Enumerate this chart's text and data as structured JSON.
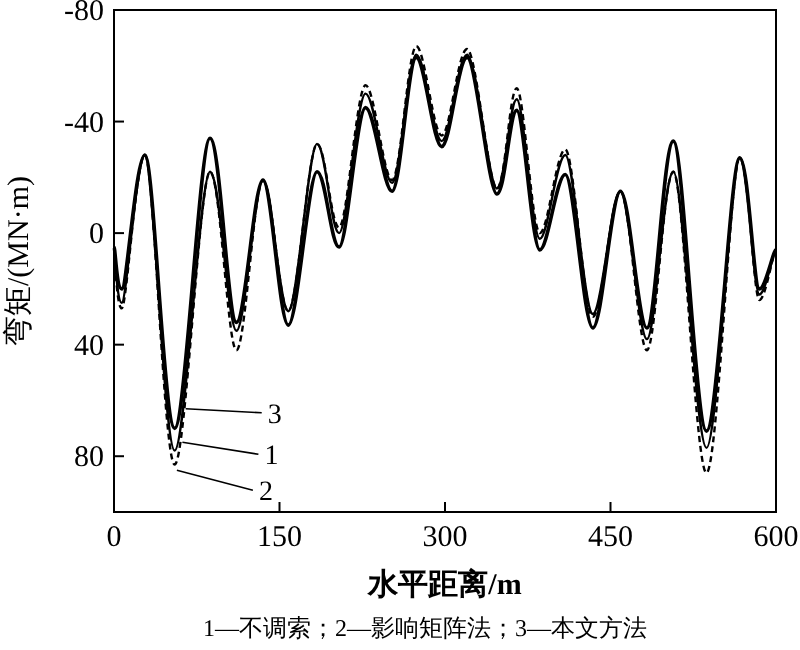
{
  "chart_data": {
    "type": "line",
    "xlabel": "水平距离/m",
    "ylabel": "弯矩/(MN·m)",
    "x": [
      0,
      7,
      28,
      55,
      87,
      111,
      135,
      158,
      184,
      204,
      228,
      252,
      274,
      297,
      320,
      347,
      365,
      386,
      409,
      434,
      459,
      483,
      507,
      537,
      567,
      585,
      600
    ],
    "series": [
      {
        "color": "#000000",
        "line_style": "solid",
        "values": [
          6,
          25,
          -28,
          78,
          -22,
          35,
          -19,
          28,
          -32,
          0,
          -50,
          -18,
          -64,
          -33,
          -64,
          -16,
          -48,
          2,
          -28,
          29,
          -15,
          38,
          -22,
          77,
          -27,
          22,
          6
        ]
      },
      {
        "color": "#000000",
        "line_style": "dashed",
        "values": [
          8,
          27,
          -28,
          83,
          -22,
          42,
          -19,
          28,
          -32,
          -2,
          -53,
          -19,
          -67,
          -35,
          -66,
          -16,
          -52,
          0,
          -30,
          30,
          -15,
          42,
          -22,
          86,
          -27,
          24,
          6
        ]
      },
      {
        "color": "#000000",
        "line_style": "solid",
        "values": [
          5,
          20,
          -28,
          70,
          -34,
          32,
          -19,
          33,
          -22,
          5,
          -45,
          -15,
          -63,
          -31,
          -63,
          -14,
          -44,
          6,
          -21,
          34,
          -15,
          34,
          -33,
          71,
          -27,
          20,
          6
        ]
      }
    ],
    "xlim": [
      0,
      600
    ],
    "xticks": [
      0,
      150,
      300,
      450,
      600
    ],
    "ylim": [
      100,
      -80
    ],
    "yticks": [
      -80,
      -40,
      0,
      40,
      80
    ],
    "grid": false,
    "marker": "none",
    "annotations": [
      {
        "text": "3",
        "x": 65,
        "y": 63
      },
      {
        "text": "1",
        "x": 62,
        "y": 75
      },
      {
        "text": "2",
        "x": 57,
        "y": 85
      },
      "1—不调索；2—影响矩阵法；3—本文方法"
    ]
  }
}
